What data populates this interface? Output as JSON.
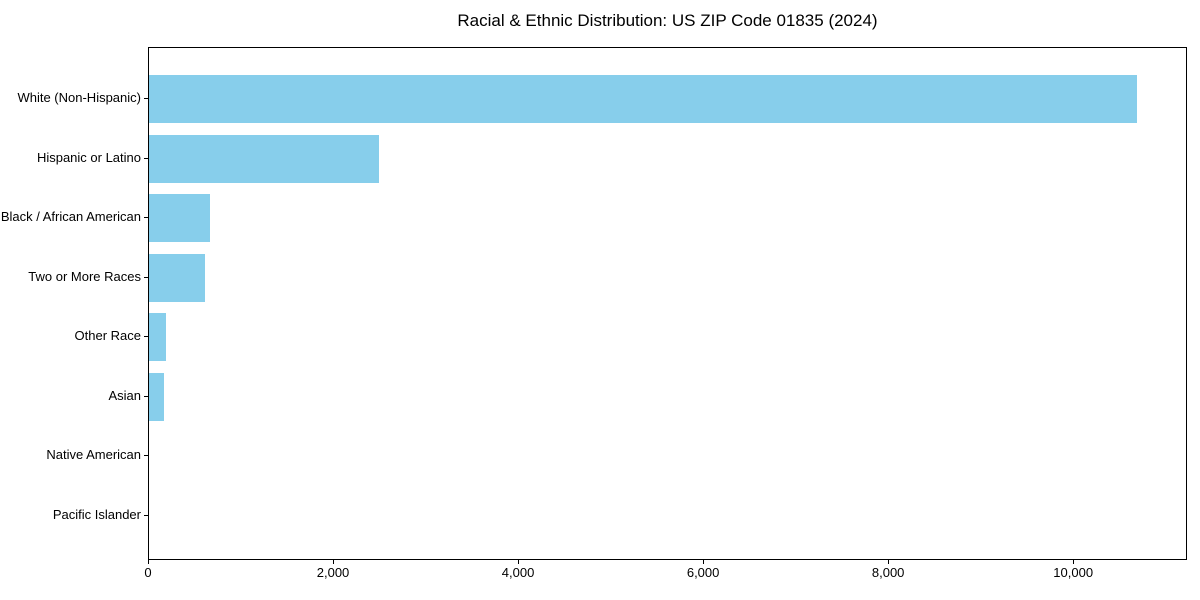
{
  "chart_data": {
    "type": "bar",
    "orientation": "horizontal",
    "title": "Racial & Ethnic Distribution: US ZIP Code 01835 (2024)",
    "categories": [
      "White (Non-Hispanic)",
      "Hispanic or Latino",
      "Black / African American",
      "Two or More Races",
      "Other Race",
      "Asian",
      "Native American",
      "Pacific Islander"
    ],
    "values": [
      10680,
      2490,
      660,
      600,
      185,
      160,
      0,
      0
    ],
    "xlabel": "",
    "ylabel": "",
    "xlim": [
      0,
      11230
    ],
    "x_ticks": [
      0,
      2000,
      4000,
      6000,
      8000,
      10000
    ],
    "x_tick_labels": [
      "0",
      "2,000",
      "4,000",
      "6,000",
      "8,000",
      "10,000"
    ],
    "bar_color": "#87CEEB",
    "background": "#FFFFFF",
    "text_color": "#000000",
    "grid": false,
    "legend": null,
    "categories_order": "top-to-bottom descending"
  }
}
